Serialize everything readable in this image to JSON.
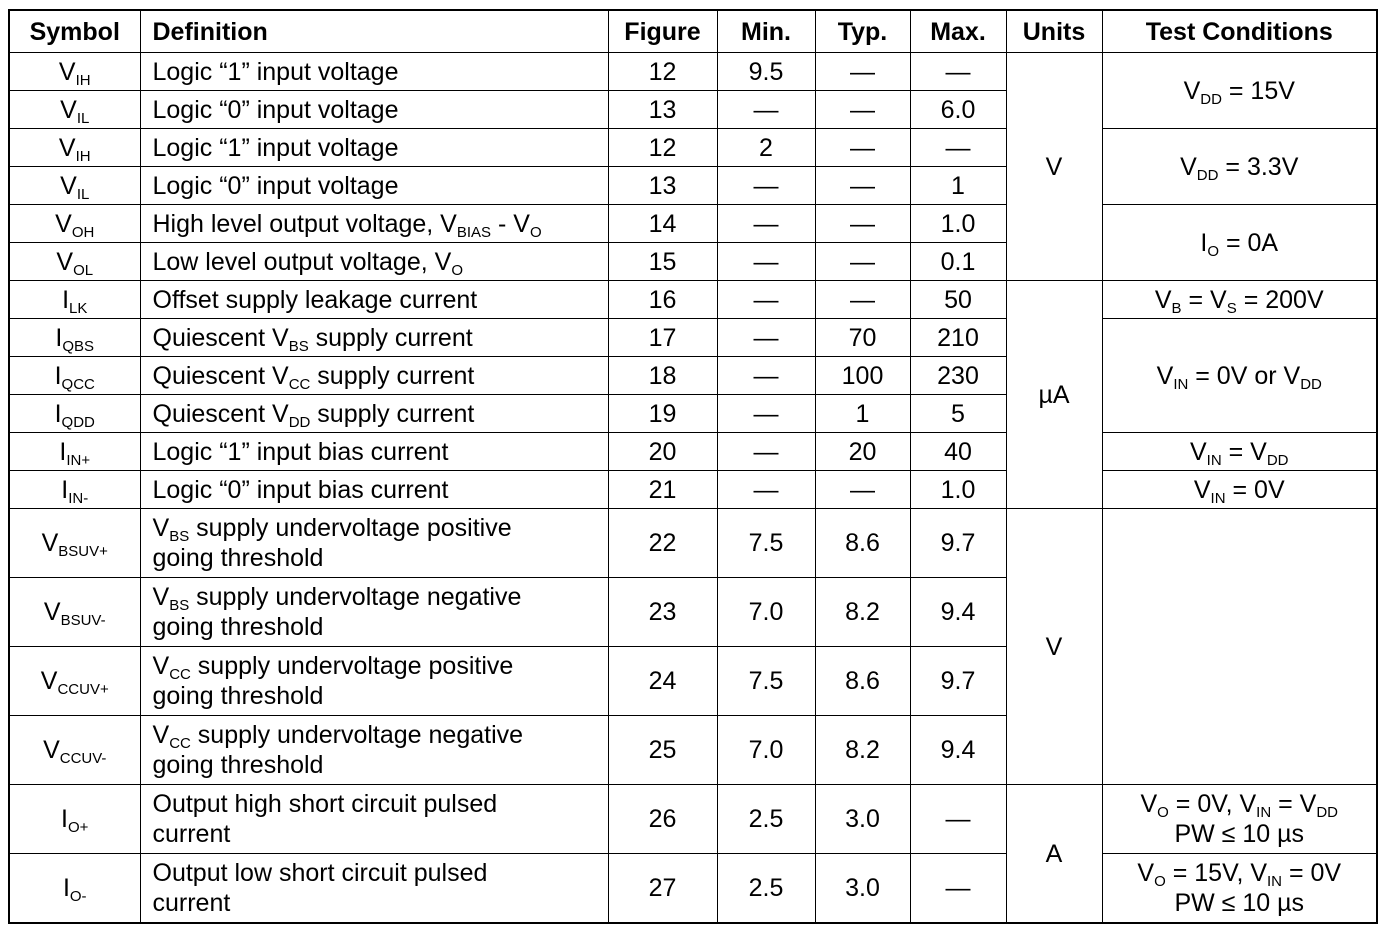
{
  "headers": {
    "symbol": "Symbol",
    "definition": "Definition",
    "figure": "Figure",
    "min": "Min.",
    "typ": "Typ.",
    "max": "Max.",
    "units": "Units",
    "conditions": "Test Conditions"
  },
  "rows": [
    {
      "sym": "V",
      "sub": "IH",
      "def": [
        {
          "t": "Logic “1” input voltage"
        }
      ],
      "fig": "12",
      "min": "9.5",
      "typ": "—",
      "max": "—"
    },
    {
      "sym": "V",
      "sub": "IL",
      "def": [
        {
          "t": "Logic “0” input voltage"
        }
      ],
      "fig": "13",
      "min": "—",
      "typ": "—",
      "max": "6.0"
    },
    {
      "sym": "V",
      "sub": "IH",
      "def": [
        {
          "t": "Logic “1” input voltage"
        }
      ],
      "fig": "12",
      "min": "2",
      "typ": "—",
      "max": "—"
    },
    {
      "sym": "V",
      "sub": "IL",
      "def": [
        {
          "t": "Logic “0” input voltage"
        }
      ],
      "fig": "13",
      "min": "—",
      "typ": "—",
      "max": "1"
    },
    {
      "sym": "V",
      "sub": "OH",
      "def": [
        {
          "t": "High level output voltage, V"
        },
        {
          "s": "BIAS"
        },
        {
          "t": " - V"
        },
        {
          "s": "O"
        }
      ],
      "fig": "14",
      "min": "—",
      "typ": "—",
      "max": "1.0"
    },
    {
      "sym": "V",
      "sub": "OL",
      "def": [
        {
          "t": "Low level output voltage, V"
        },
        {
          "s": "O"
        }
      ],
      "fig": "15",
      "min": "—",
      "typ": "—",
      "max": "0.1"
    },
    {
      "sym": "I",
      "sub": "LK",
      "def": [
        {
          "t": "Offset supply leakage current"
        }
      ],
      "fig": "16",
      "min": "—",
      "typ": "—",
      "max": "50"
    },
    {
      "sym": "I",
      "sub": "QBS",
      "def": [
        {
          "t": "Quiescent V"
        },
        {
          "s": "BS"
        },
        {
          "t": " supply current"
        }
      ],
      "fig": "17",
      "min": "—",
      "typ": "70",
      "max": "210"
    },
    {
      "sym": "I",
      "sub": "QCC",
      "def": [
        {
          "t": "Quiescent V"
        },
        {
          "s": "CC"
        },
        {
          "t": " supply current"
        }
      ],
      "fig": "18",
      "min": "—",
      "typ": "100",
      "max": "230"
    },
    {
      "sym": "I",
      "sub": "QDD",
      "def": [
        {
          "t": "Quiescent V"
        },
        {
          "s": "DD"
        },
        {
          "t": " supply current"
        }
      ],
      "fig": "19",
      "min": "—",
      "typ": "1",
      "max": "5"
    },
    {
      "sym": "I",
      "sub": "IN+",
      "def": [
        {
          "t": "Logic “1” input bias current"
        }
      ],
      "fig": "20",
      "min": "—",
      "typ": "20",
      "max": "40"
    },
    {
      "sym": "I",
      "sub": "IN-",
      "def": [
        {
          "t": "Logic “0” input bias current"
        }
      ],
      "fig": "21",
      "min": "—",
      "typ": "—",
      "max": "1.0"
    },
    {
      "sym": "V",
      "sub": "BSUV+",
      "def": [
        {
          "t": "V"
        },
        {
          "s": "BS"
        },
        {
          "t": " supply undervoltage positive"
        },
        {
          "br": 1
        },
        {
          "t": "going threshold"
        }
      ],
      "fig": "22",
      "min": "7.5",
      "typ": "8.6",
      "max": "9.7"
    },
    {
      "sym": "V",
      "sub": "BSUV-",
      "def": [
        {
          "t": "V"
        },
        {
          "s": "BS"
        },
        {
          "t": " supply undervoltage negative"
        },
        {
          "br": 1
        },
        {
          "t": "going threshold"
        }
      ],
      "fig": "23",
      "min": "7.0",
      "typ": "8.2",
      "max": "9.4"
    },
    {
      "sym": "V",
      "sub": "CCUV+",
      "def": [
        {
          "t": "V"
        },
        {
          "s": "CC"
        },
        {
          "t": " supply undervoltage positive"
        },
        {
          "br": 1
        },
        {
          "t": "going threshold"
        }
      ],
      "fig": "24",
      "min": "7.5",
      "typ": "8.6",
      "max": "9.7"
    },
    {
      "sym": "V",
      "sub": "CCUV-",
      "def": [
        {
          "t": "V"
        },
        {
          "s": "CC"
        },
        {
          "t": " supply undervoltage negative"
        },
        {
          "br": 1
        },
        {
          "t": "going threshold"
        }
      ],
      "fig": "25",
      "min": "7.0",
      "typ": "8.2",
      "max": "9.4"
    },
    {
      "sym": "I",
      "sub": "O+",
      "def": [
        {
          "t": "Output high short circuit pulsed"
        },
        {
          "br": 1
        },
        {
          "t": "current"
        }
      ],
      "fig": "26",
      "min": "2.5",
      "typ": "3.0",
      "max": "—"
    },
    {
      "sym": "I",
      "sub": "O-",
      "def": [
        {
          "t": "Output low short circuit pulsed"
        },
        {
          "br": 1
        },
        {
          "t": "current"
        }
      ],
      "fig": "27",
      "min": "2.5",
      "typ": "3.0",
      "max": "—"
    }
  ],
  "units": [
    {
      "row": 0,
      "span": 6,
      "text": "V"
    },
    {
      "row": 6,
      "span": 6,
      "text": "µA"
    },
    {
      "row": 12,
      "span": 4,
      "text": "V"
    },
    {
      "row": 16,
      "span": 2,
      "text": "A"
    }
  ],
  "conditions": [
    {
      "row": 0,
      "span": 2,
      "parts": [
        {
          "t": "V"
        },
        {
          "s": "DD"
        },
        {
          "t": " = 15V"
        }
      ]
    },
    {
      "row": 2,
      "span": 2,
      "parts": [
        {
          "t": "V"
        },
        {
          "s": "DD"
        },
        {
          "t": " = 3.3V"
        }
      ]
    },
    {
      "row": 4,
      "span": 2,
      "parts": [
        {
          "t": "I"
        },
        {
          "s": "O"
        },
        {
          "t": " = 0A"
        }
      ]
    },
    {
      "row": 6,
      "span": 1,
      "parts": [
        {
          "t": "V"
        },
        {
          "s": "B"
        },
        {
          "t": " = V"
        },
        {
          "s": "S"
        },
        {
          "t": " = 200V"
        }
      ]
    },
    {
      "row": 7,
      "span": 3,
      "parts": [
        {
          "t": "V"
        },
        {
          "s": "IN"
        },
        {
          "t": " = 0V or V"
        },
        {
          "s": "DD"
        }
      ]
    },
    {
      "row": 10,
      "span": 1,
      "parts": [
        {
          "t": "V"
        },
        {
          "s": "IN"
        },
        {
          "t": " = V"
        },
        {
          "s": "DD"
        }
      ]
    },
    {
      "row": 11,
      "span": 1,
      "parts": [
        {
          "t": "V"
        },
        {
          "s": "IN"
        },
        {
          "t": " = 0V"
        }
      ]
    },
    {
      "row": 12,
      "span": 4,
      "parts": []
    },
    {
      "row": 16,
      "span": 1,
      "parts": [
        {
          "t": "V"
        },
        {
          "s": "O"
        },
        {
          "t": " = 0V, V"
        },
        {
          "s": "IN"
        },
        {
          "t": " = V"
        },
        {
          "s": "DD"
        },
        {
          "br": 1
        },
        {
          "t": "PW ≤ 10 µs"
        }
      ]
    },
    {
      "row": 17,
      "span": 1,
      "parts": [
        {
          "t": "V"
        },
        {
          "s": "O"
        },
        {
          "t": " = 15V, V"
        },
        {
          "s": "IN"
        },
        {
          "t": " = 0V"
        },
        {
          "br": 1
        },
        {
          "t": "PW ≤ 10 µs"
        }
      ]
    }
  ]
}
